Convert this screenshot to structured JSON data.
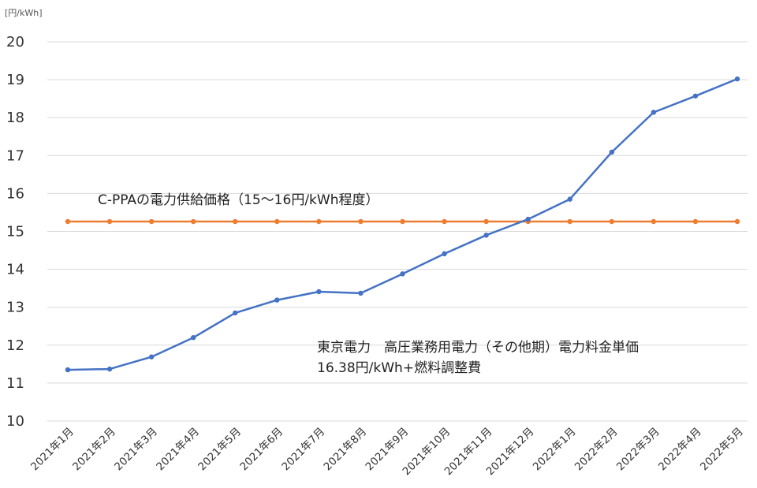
{
  "chart_data": {
    "type": "line",
    "unit_label": "[円/kWh]",
    "ylim": [
      10,
      20
    ],
    "yticks": [
      "10",
      "11",
      "12",
      "13",
      "14",
      "15",
      "16",
      "17",
      "18",
      "19",
      "20"
    ],
    "grid": true,
    "categories": [
      "2021年1月",
      "2021年2月",
      "2021年3月",
      "2021年4月",
      "2021年5月",
      "2021年6月",
      "2021年7月",
      "2021年8月",
      "2021年9月",
      "2021年10月",
      "2021年11月",
      "2021年12月",
      "2022年1月",
      "2022年2月",
      "2022年3月",
      "2022年4月",
      "2022年5月"
    ],
    "series": [
      {
        "color": "#4472C4",
        "values": [
          11.35,
          11.37,
          11.69,
          12.2,
          12.85,
          13.19,
          13.41,
          13.37,
          13.88,
          14.41,
          14.9,
          15.32,
          15.85,
          17.09,
          18.14,
          18.57,
          19.02
        ]
      },
      {
        "color": "#ED7D31",
        "values": [
          15.26,
          15.26,
          15.26,
          15.26,
          15.26,
          15.26,
          15.26,
          15.26,
          15.26,
          15.26,
          15.26,
          15.26,
          15.26,
          15.26,
          15.26,
          15.26,
          15.26
        ]
      }
    ],
    "annotations": {
      "cppa": "C-PPAの電力供給価格（15〜16円/kWh程度）",
      "tepco_line1": "東京電力　高圧業務用電力（その他期）電力料金単価",
      "tepco_line2": "16.38円/kWh+燃料調整費"
    }
  }
}
